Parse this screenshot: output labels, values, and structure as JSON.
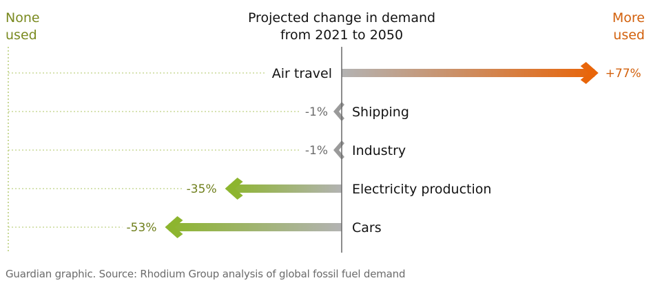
{
  "chart_data": {
    "type": "bar",
    "title": "Projected change in demand from 2021 to 2050",
    "title_lines": [
      "Projected change in demand",
      "from 2021 to 2050"
    ],
    "left_label_lines": [
      "None",
      "used"
    ],
    "right_label_lines": [
      "More",
      "used"
    ],
    "xlim": [
      -100,
      90
    ],
    "categories": [
      "Air travel",
      "Shipping",
      "Industry",
      "Electricity production",
      "Cars"
    ],
    "values": [
      77,
      -1,
      -1,
      -35,
      -53
    ],
    "value_labels": [
      "+77%",
      "-1%",
      "-1%",
      "-35%",
      "-53%"
    ],
    "colors": {
      "positive": "#e8650a",
      "negative": "#8db52f",
      "neutral": "#9a9a9a",
      "start_gray": "#b3b3b3",
      "positive_text": "#d2600c",
      "negative_text": "#6f7f1c",
      "axis_label_none": "#7a8a20",
      "axis_label_more": "#d2600c",
      "dotted": "#c8d896"
    }
  },
  "footer": "Guardian graphic. Source: Rhodium Group analysis of global fossil fuel demand"
}
